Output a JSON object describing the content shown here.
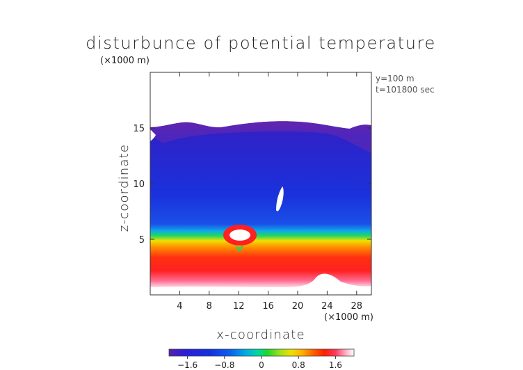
{
  "chart_data": {
    "type": "heatmap",
    "title": "disturbunce of potential temperature",
    "unit_label": "(×1000 m)",
    "xlabel": "x-coordinate",
    "ylabel": "z-coordinate",
    "x_unit_label": "(×1000 m)",
    "annotations": [
      "y=100 m",
      "t=101800 sec"
    ],
    "xlim": [
      0,
      30
    ],
    "ylim": [
      0,
      20
    ],
    "x_ticks": [
      4,
      8,
      12,
      16,
      20,
      24,
      28
    ],
    "y_ticks": [
      5,
      10,
      15
    ],
    "colorbar": {
      "range": [
        -2.0,
        2.0
      ],
      "ticks": [
        -1.6,
        -0.8,
        0,
        0.8,
        1.6
      ],
      "tick_labels": [
        "−1.6",
        "−0.8",
        "0",
        "0.8",
        "1.6"
      ],
      "colors": [
        "#5a1fa8",
        "#2a1fd8",
        "#1530e0",
        "#0a60f0",
        "#00b0e0",
        "#00d8a0",
        "#18d830",
        "#a0e020",
        "#f0e000",
        "#ffb000",
        "#ff6000",
        "#ff2000",
        "#ff3a60",
        "#ffb8c8",
        "#ffffff"
      ]
    },
    "field_summary": [
      {
        "z_range": [
          0.6,
          4.5
        ],
        "value_approx": 1.6,
        "note": "warm layer (red)"
      },
      {
        "z_range": [
          4.5,
          6.2
        ],
        "value_approx": 0.5,
        "note": "transition (yellow-green)"
      },
      {
        "z_range": [
          6.2,
          15.5
        ],
        "value_approx": -1.4,
        "note": "cool layer (blue)"
      },
      {
        "z_range": [
          14.0,
          15.5
        ],
        "value_approx": -1.8,
        "note": "top band (purple)"
      },
      {
        "z_range": [
          15.5,
          20.0
        ],
        "value_approx": null,
        "note": "no data (white)"
      }
    ],
    "features": [
      {
        "x": 11.5,
        "z": 5.5,
        "note": "warm anomaly (white center)"
      },
      {
        "x": 17.8,
        "z": 8.5,
        "note": "narrow white plume"
      },
      {
        "x": 23.5,
        "z": 1.0,
        "note": "terrain bump"
      }
    ],
    "grid": false
  }
}
